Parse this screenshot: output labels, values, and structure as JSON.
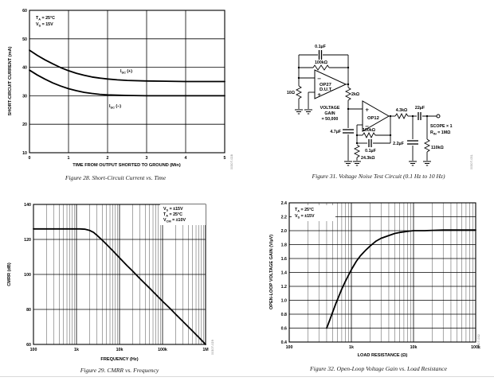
{
  "page": {
    "background": "#ffffff"
  },
  "figures": {
    "fig28": {
      "caption": "Figure 28. Short-Circuit Current vs. Time",
      "code": "00307-028",
      "chart_data": {
        "type": "line",
        "xscale": "linear",
        "xlabel": "TIME FROM OUTPUT SHORTED TO GROUND (Min)",
        "ylabel": "SHORT-CIRCUIT CURRENT (mA)",
        "xlim": [
          0,
          5
        ],
        "ylim": [
          10,
          60
        ],
        "xticks": [
          {
            "v": 0,
            "l": "0"
          },
          {
            "v": 1,
            "l": "1"
          },
          {
            "v": 2,
            "l": "2"
          },
          {
            "v": 3,
            "l": "3"
          },
          {
            "v": 4,
            "l": "4"
          },
          {
            "v": 5,
            "l": "5"
          }
        ],
        "yticks": [
          {
            "v": 10,
            "l": "10"
          },
          {
            "v": 20,
            "l": "20"
          },
          {
            "v": 30,
            "l": "30"
          },
          {
            "v": 40,
            "l": "40"
          },
          {
            "v": 50,
            "l": "50"
          },
          {
            "v": 60,
            "l": "60"
          }
        ],
        "annotation": [
          [
            {
              "t": "T"
            },
            {
              "t": "A",
              "sub": true
            },
            {
              "t": " = 25°C"
            }
          ],
          [
            {
              "t": "V"
            },
            {
              "t": "S",
              "sub": true
            },
            {
              "t": " = 15V"
            }
          ]
        ],
        "series": [
          {
            "name": "ISC(+)",
            "label": [
              {
                "t": "I"
              },
              {
                "t": "SC",
                "sub": true
              },
              {
                "t": " (+)"
              }
            ],
            "points": [
              [
                0,
                46
              ],
              [
                0.2,
                44.2
              ],
              [
                0.4,
                42.6
              ],
              [
                0.6,
                41.2
              ],
              [
                0.8,
                39.9
              ],
              [
                1,
                38.8
              ],
              [
                1.2,
                37.9
              ],
              [
                1.4,
                37.2
              ],
              [
                1.6,
                36.6
              ],
              [
                1.8,
                36.2
              ],
              [
                2,
                35.9
              ],
              [
                2.25,
                35.6
              ],
              [
                2.5,
                35.4
              ],
              [
                3,
                35.2
              ],
              [
                3.5,
                35.1
              ],
              [
                4,
                35
              ],
              [
                4.5,
                35
              ],
              [
                5,
                35
              ]
            ]
          },
          {
            "name": "ISC(−)",
            "label": [
              {
                "t": "I"
              },
              {
                "t": "SC",
                "sub": true
              },
              {
                "t": " (−)"
              }
            ],
            "points": [
              [
                0,
                39
              ],
              [
                0.2,
                37.3
              ],
              [
                0.4,
                35.8
              ],
              [
                0.6,
                34.5
              ],
              [
                0.8,
                33.4
              ],
              [
                1,
                32.5
              ],
              [
                1.2,
                31.8
              ],
              [
                1.4,
                31.2
              ],
              [
                1.6,
                30.8
              ],
              [
                1.8,
                30.5
              ],
              [
                2,
                30.3
              ],
              [
                2.25,
                30.2
              ],
              [
                2.5,
                30.1
              ],
              [
                3,
                30
              ],
              [
                3.5,
                30
              ],
              [
                4,
                30
              ],
              [
                4.5,
                30
              ],
              [
                5,
                30
              ]
            ]
          }
        ]
      }
    },
    "fig31": {
      "caption": "Figure 31. Voltage Noise Test Circuit (0.1 Hz to 10 Hz)",
      "code": "00307-031",
      "labels": {
        "c1": "0.1µF",
        "r1": "100kΩ",
        "amp1": "OP27",
        "amp1b": "D.U.T.",
        "r2": "10Ω",
        "gain1": "VOLTAGE",
        "gain2": "GAIN",
        "gain3": "= 50,000",
        "r3": "2kΩ",
        "amp2": "OP12",
        "c2": "4.7µF",
        "r4": "100kΩ",
        "c3": "0.1µF",
        "r5": "24.3kΩ",
        "r6": "4.3kΩ",
        "c4": "22µF",
        "c5": "2.2µF",
        "r7": "110kΩ",
        "scope1": "SCOPE × 1",
        "scope2a": "R",
        "scope2b": "IN",
        "scope2c": " = 1MΩ",
        "plus": "+",
        "minus": "−"
      }
    },
    "fig29": {
      "caption": "Figure 29. CMRR vs. Frequency",
      "code": "00307-029",
      "chart_data": {
        "type": "line",
        "xscale": "log",
        "xlabel": "FREQUENCY (Hz)",
        "ylabel": "CMRR (dB)",
        "xlim": [
          100,
          1000000
        ],
        "ylim": [
          60,
          140
        ],
        "xticks": [
          {
            "v": 100,
            "l": "100"
          },
          {
            "v": 1000,
            "l": "1k"
          },
          {
            "v": 10000,
            "l": "10k"
          },
          {
            "v": 100000,
            "l": "100k"
          },
          {
            "v": 1000000,
            "l": "1M"
          }
        ],
        "yticks": [
          {
            "v": 60,
            "l": "60"
          },
          {
            "v": 80,
            "l": "80"
          },
          {
            "v": 100,
            "l": "100"
          },
          {
            "v": 120,
            "l": "120"
          },
          {
            "v": 140,
            "l": "140"
          }
        ],
        "annotation": [
          [
            {
              "t": "V"
            },
            {
              "t": "S",
              "sub": true
            },
            {
              "t": " = ±15V"
            }
          ],
          [
            {
              "t": "T"
            },
            {
              "t": "A",
              "sub": true
            },
            {
              "t": " = 25°C"
            }
          ],
          [
            {
              "t": "V"
            },
            {
              "t": "CM",
              "sub": true
            },
            {
              "t": " = ±10V"
            }
          ]
        ],
        "series": [
          {
            "name": "CMRR",
            "points": [
              [
                100,
                126
              ],
              [
                300,
                126
              ],
              [
                800,
                126
              ],
              [
                1200,
                126
              ],
              [
                1600,
                125.8
              ],
              [
                2000,
                125.2
              ],
              [
                2500,
                124
              ],
              [
                3000,
                122.3
              ],
              [
                4000,
                119.5
              ],
              [
                5000,
                117.2
              ],
              [
                7000,
                113.5
              ],
              [
                10000,
                109.5
              ],
              [
                15000,
                105
              ],
              [
                20000,
                102
              ],
              [
                30000,
                97.5
              ],
              [
                50000,
                92.2
              ],
              [
                70000,
                88.5
              ],
              [
                100000,
                84.7
              ],
              [
                150000,
                80.5
              ],
              [
                200000,
                77.3
              ],
              [
                300000,
                73
              ],
              [
                500000,
                67.6
              ],
              [
                700000,
                64
              ],
              [
                1000000,
                60
              ]
            ]
          }
        ]
      }
    },
    "fig32": {
      "caption": "Figure 32. Open-Loop Voltage Gain vs. Load Resistance",
      "code": "00307-032",
      "chart_data": {
        "type": "line",
        "xscale": "log",
        "xlabel": "LOAD RESISTANCE (Ω)",
        "ylabel": "OPEN-LOOP VOLTAGE GAIN (V/µV)",
        "xlim": [
          100,
          100000
        ],
        "ylim": [
          0.4,
          2.4
        ],
        "xticks": [
          {
            "v": 100,
            "l": "100"
          },
          {
            "v": 1000,
            "l": "1k"
          },
          {
            "v": 10000,
            "l": "10k"
          },
          {
            "v": 100000,
            "l": "100k"
          }
        ],
        "yticks": [
          {
            "v": 0.4,
            "l": "0.4"
          },
          {
            "v": 0.6,
            "l": "0.6"
          },
          {
            "v": 0.8,
            "l": "0.8"
          },
          {
            "v": 1.0,
            "l": "1.0"
          },
          {
            "v": 1.2,
            "l": "1.2"
          },
          {
            "v": 1.4,
            "l": "1.4"
          },
          {
            "v": 1.6,
            "l": "1.6"
          },
          {
            "v": 1.8,
            "l": "1.8"
          },
          {
            "v": 2.0,
            "l": "2.0"
          },
          {
            "v": 2.2,
            "l": "2.2"
          },
          {
            "v": 2.4,
            "l": "2.4"
          }
        ],
        "annotation": [
          [
            {
              "t": "T"
            },
            {
              "t": "A",
              "sub": true
            },
            {
              "t": " = 25°C"
            }
          ],
          [
            {
              "t": "V"
            },
            {
              "t": "S",
              "sub": true
            },
            {
              "t": " = ±15V"
            }
          ]
        ],
        "series": [
          {
            "name": "Open-loop gain",
            "points": [
              [
                400,
                0.6
              ],
              [
                450,
                0.72
              ],
              [
                500,
                0.83
              ],
              [
                560,
                0.95
              ],
              [
                630,
                1.06
              ],
              [
                700,
                1.16
              ],
              [
                800,
                1.27
              ],
              [
                900,
                1.36
              ],
              [
                1000,
                1.44
              ],
              [
                1200,
                1.56
              ],
              [
                1400,
                1.64
              ],
              [
                1700,
                1.72
              ],
              [
                2000,
                1.78
              ],
              [
                2500,
                1.85
              ],
              [
                3000,
                1.89
              ],
              [
                4000,
                1.93
              ],
              [
                5000,
                1.96
              ],
              [
                6000,
                1.975
              ],
              [
                8000,
                1.99
              ],
              [
                10000,
                2.0
              ],
              [
                15000,
                2.0
              ],
              [
                30000,
                2.01
              ],
              [
                60000,
                2.01
              ],
              [
                100000,
                2.01
              ]
            ]
          }
        ]
      }
    }
  }
}
